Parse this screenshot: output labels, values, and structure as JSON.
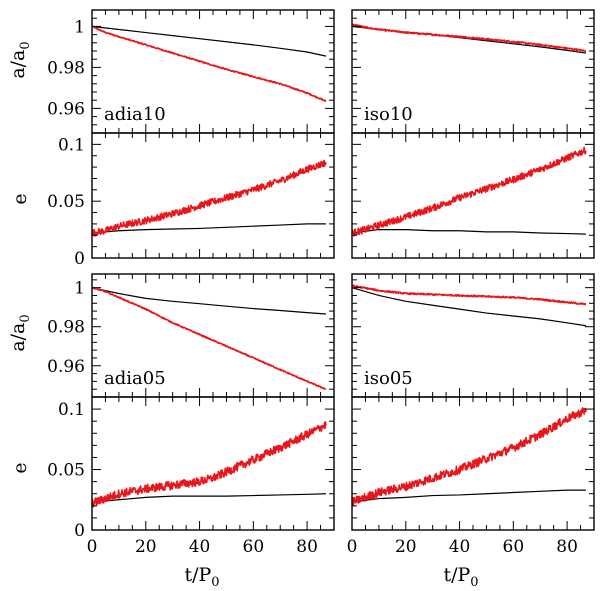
{
  "figure": {
    "xlabel_main": "t/P",
    "xlabel_sub": "0",
    "ylabel_a_main": "a/a",
    "ylabel_a_sub": "0",
    "ylabel_e": "e",
    "colors": {
      "red": "#e8161a",
      "black": "#000000"
    }
  },
  "chart_data": [
    {
      "type": "line",
      "id": "adia10-a",
      "label": "adia10",
      "ylabel": "a/a0",
      "xlabel": "",
      "xlim": [
        0,
        90
      ],
      "ylim": [
        0.948,
        1.008
      ],
      "yticks": [
        0.96,
        0.98,
        1
      ],
      "ytick_labels": [
        "0.96",
        "0.98",
        "1"
      ],
      "xticks": [
        0,
        20,
        40,
        60,
        80
      ],
      "xtick_labels": [],
      "series": [
        {
          "name": "black",
          "color": "#000000",
          "x": [
            0,
            10,
            20,
            30,
            40,
            50,
            60,
            70,
            80,
            87
          ],
          "y": [
            1.0,
            0.9985,
            0.997,
            0.9955,
            0.994,
            0.9925,
            0.991,
            0.9893,
            0.9875,
            0.9855
          ]
        },
        {
          "name": "red",
          "color": "#e8161a",
          "noise": 0.0003,
          "x": [
            0,
            5,
            10,
            20,
            30,
            40,
            50,
            60,
            70,
            80,
            87
          ],
          "y": [
            1.0,
            0.997,
            0.995,
            0.991,
            0.987,
            0.983,
            0.979,
            0.9755,
            0.972,
            0.9675,
            0.9635
          ]
        }
      ]
    },
    {
      "type": "line",
      "id": "iso10-a",
      "label": "iso10",
      "ylabel": "",
      "xlabel": "",
      "xlim": [
        0,
        90
      ],
      "ylim": [
        0.948,
        1.008
      ],
      "yticks": [
        0.96,
        0.98,
        1
      ],
      "ytick_labels": [],
      "xticks": [
        0,
        20,
        40,
        60,
        80
      ],
      "xtick_labels": [],
      "series": [
        {
          "name": "black",
          "color": "#000000",
          "x": [
            0,
            10,
            20,
            30,
            40,
            50,
            60,
            70,
            80,
            87
          ],
          "y": [
            1.0,
            0.9985,
            0.9972,
            0.996,
            0.9945,
            0.993,
            0.9915,
            0.99,
            0.9883,
            0.987
          ]
        },
        {
          "name": "red",
          "color": "#e8161a",
          "noise": 0.0004,
          "x": [
            0,
            5,
            10,
            20,
            30,
            40,
            50,
            60,
            70,
            80,
            87
          ],
          "y": [
            1.001,
            0.9995,
            0.9985,
            0.997,
            0.996,
            0.995,
            0.9938,
            0.9925,
            0.991,
            0.9893,
            0.988
          ]
        }
      ]
    },
    {
      "type": "line",
      "id": "adia10-e",
      "label": "",
      "ylabel": "e",
      "xlabel": "",
      "xlim": [
        0,
        90
      ],
      "ylim": [
        0,
        0.11
      ],
      "yticks": [
        0,
        0.05,
        0.1
      ],
      "ytick_labels": [
        "0",
        "0.05",
        "0.1"
      ],
      "xticks": [
        0,
        20,
        40,
        60,
        80
      ],
      "xtick_labels": [],
      "series": [
        {
          "name": "black",
          "color": "#000000",
          "x": [
            0,
            10,
            20,
            30,
            40,
            50,
            60,
            70,
            80,
            87
          ],
          "y": [
            0.022,
            0.024,
            0.025,
            0.0255,
            0.026,
            0.027,
            0.028,
            0.029,
            0.03,
            0.03
          ]
        },
        {
          "name": "red",
          "color": "#e8161a",
          "noise": 0.003,
          "x": [
            0,
            5,
            10,
            20,
            30,
            40,
            50,
            60,
            70,
            80,
            87
          ],
          "y": [
            0.022,
            0.024,
            0.028,
            0.033,
            0.039,
            0.046,
            0.053,
            0.06,
            0.068,
            0.078,
            0.084
          ]
        }
      ]
    },
    {
      "type": "line",
      "id": "iso10-e",
      "label": "",
      "ylabel": "",
      "xlabel": "",
      "xlim": [
        0,
        90
      ],
      "ylim": [
        0,
        0.11
      ],
      "yticks": [
        0,
        0.05,
        0.1
      ],
      "ytick_labels": [],
      "xticks": [
        0,
        20,
        40,
        60,
        80
      ],
      "xtick_labels": [],
      "series": [
        {
          "name": "black",
          "color": "#000000",
          "x": [
            0,
            10,
            20,
            30,
            40,
            50,
            60,
            70,
            80,
            87
          ],
          "y": [
            0.022,
            0.025,
            0.025,
            0.024,
            0.024,
            0.023,
            0.023,
            0.022,
            0.0215,
            0.021
          ]
        },
        {
          "name": "red",
          "color": "#e8161a",
          "noise": 0.003,
          "x": [
            0,
            5,
            10,
            20,
            30,
            40,
            50,
            60,
            70,
            80,
            87
          ],
          "y": [
            0.022,
            0.025,
            0.029,
            0.036,
            0.044,
            0.053,
            0.061,
            0.069,
            0.078,
            0.088,
            0.095
          ]
        }
      ]
    },
    {
      "type": "line",
      "id": "adia05-a",
      "label": "adia05",
      "ylabel": "a/a0",
      "xlabel": "",
      "xlim": [
        0,
        90
      ],
      "ylim": [
        0.944,
        1.007
      ],
      "yticks": [
        0.96,
        0.98,
        1
      ],
      "ytick_labels": [
        "0.96",
        "0.98",
        "1"
      ],
      "xticks": [
        0,
        20,
        40,
        60,
        80
      ],
      "xtick_labels": [],
      "series": [
        {
          "name": "black",
          "color": "#000000",
          "x": [
            0,
            10,
            20,
            30,
            40,
            50,
            60,
            70,
            80,
            87
          ],
          "y": [
            1.0,
            0.997,
            0.9945,
            0.993,
            0.9918,
            0.9905,
            0.9893,
            0.9883,
            0.9872,
            0.9865
          ]
        },
        {
          "name": "red",
          "color": "#e8161a",
          "noise": 0.0003,
          "x": [
            0,
            5,
            10,
            20,
            30,
            40,
            50,
            60,
            70,
            80,
            87
          ],
          "y": [
            1.0,
            0.998,
            0.995,
            0.989,
            0.982,
            0.976,
            0.97,
            0.964,
            0.958,
            0.952,
            0.948
          ]
        }
      ]
    },
    {
      "type": "line",
      "id": "iso05-a",
      "label": "iso05",
      "ylabel": "",
      "xlabel": "",
      "xlim": [
        0,
        90
      ],
      "ylim": [
        0.944,
        1.007
      ],
      "yticks": [
        0.96,
        0.98,
        1
      ],
      "ytick_labels": [],
      "xticks": [
        0,
        20,
        40,
        60,
        80
      ],
      "xtick_labels": [],
      "series": [
        {
          "name": "black",
          "color": "#000000",
          "x": [
            0,
            10,
            20,
            30,
            40,
            50,
            60,
            70,
            80,
            87
          ],
          "y": [
            1.0,
            0.996,
            0.993,
            0.991,
            0.989,
            0.987,
            0.9855,
            0.984,
            0.982,
            0.9805
          ]
        },
        {
          "name": "red",
          "color": "#e8161a",
          "noise": 0.0004,
          "x": [
            0,
            5,
            10,
            20,
            30,
            40,
            50,
            60,
            70,
            80,
            87
          ],
          "y": [
            1.001,
            0.9998,
            0.9985,
            0.997,
            0.9965,
            0.996,
            0.9955,
            0.995,
            0.994,
            0.9925,
            0.9915
          ]
        }
      ]
    },
    {
      "type": "line",
      "id": "adia05-e",
      "label": "",
      "ylabel": "e",
      "xlabel": "t/P0",
      "xlim": [
        0,
        90
      ],
      "ylim": [
        0,
        0.11
      ],
      "yticks": [
        0,
        0.05,
        0.1
      ],
      "ytick_labels": [
        "0",
        "0.05",
        "0.1"
      ],
      "xticks": [
        0,
        20,
        40,
        60,
        80
      ],
      "xtick_labels": [
        "0",
        "20",
        "40",
        "60",
        "80"
      ],
      "series": [
        {
          "name": "black",
          "color": "#000000",
          "x": [
            0,
            10,
            20,
            30,
            40,
            50,
            60,
            70,
            80,
            87
          ],
          "y": [
            0.023,
            0.025,
            0.027,
            0.028,
            0.028,
            0.028,
            0.0285,
            0.029,
            0.0295,
            0.03
          ]
        },
        {
          "name": "red",
          "color": "#e8161a",
          "noise": 0.0035,
          "x": [
            0,
            5,
            10,
            20,
            30,
            40,
            45,
            50,
            60,
            70,
            80,
            87
          ],
          "y": [
            0.022,
            0.026,
            0.03,
            0.034,
            0.037,
            0.04,
            0.043,
            0.048,
            0.058,
            0.068,
            0.079,
            0.087
          ]
        }
      ]
    },
    {
      "type": "line",
      "id": "iso05-e",
      "label": "",
      "ylabel": "",
      "xlabel": "t/P0",
      "xlim": [
        0,
        90
      ],
      "ylim": [
        0,
        0.11
      ],
      "yticks": [
        0,
        0.05,
        0.1
      ],
      "ytick_labels": [],
      "xticks": [
        0,
        20,
        40,
        60,
        80
      ],
      "xtick_labels": [
        "0",
        "20",
        "40",
        "60",
        "80"
      ],
      "series": [
        {
          "name": "black",
          "color": "#000000",
          "x": [
            0,
            10,
            20,
            30,
            40,
            50,
            60,
            70,
            80,
            87
          ],
          "y": [
            0.023,
            0.026,
            0.027,
            0.0285,
            0.029,
            0.03,
            0.031,
            0.032,
            0.033,
            0.033
          ]
        },
        {
          "name": "red",
          "color": "#e8161a",
          "noise": 0.0035,
          "x": [
            0,
            5,
            10,
            20,
            30,
            40,
            50,
            60,
            70,
            80,
            87
          ],
          "y": [
            0.023,
            0.027,
            0.031,
            0.036,
            0.043,
            0.05,
            0.059,
            0.068,
            0.079,
            0.092,
            0.099
          ]
        }
      ]
    }
  ]
}
